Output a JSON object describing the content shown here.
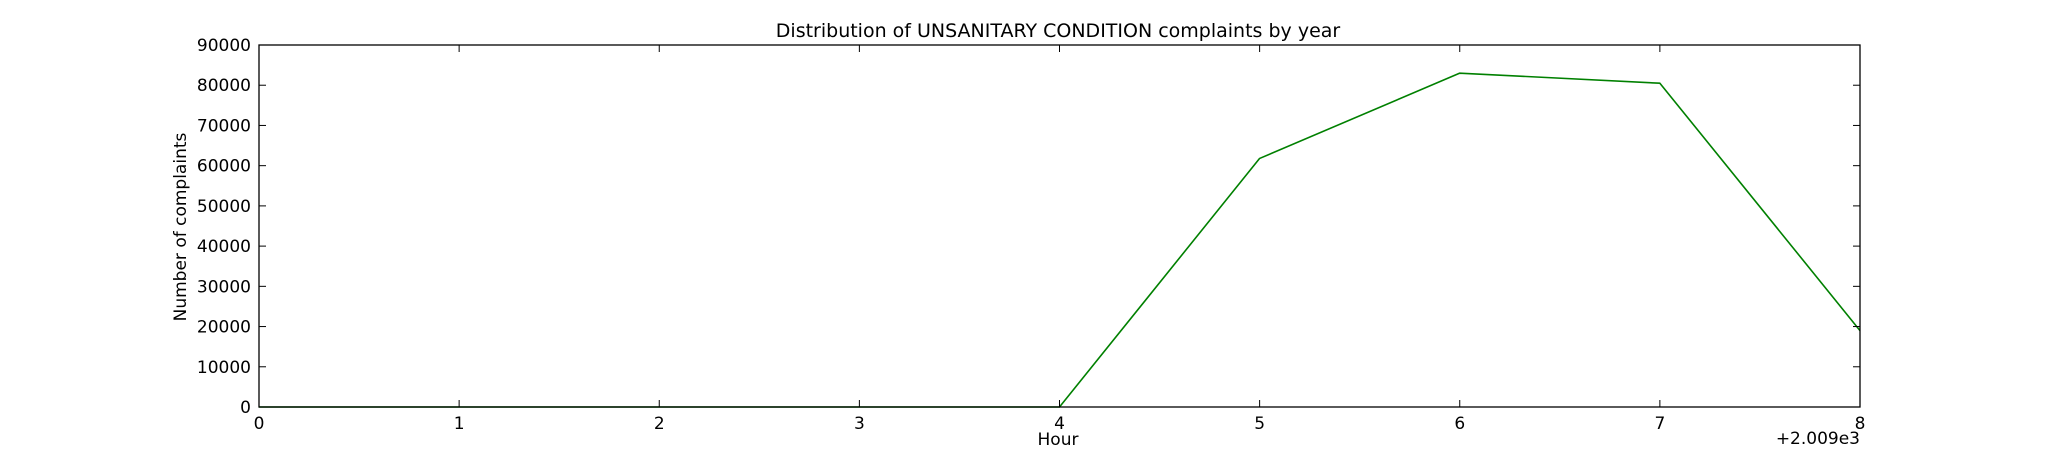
{
  "chart_data": {
    "type": "line",
    "title": "Distribution of  UNSANITARY CONDITION complaints by year",
    "xlabel": "Hour",
    "ylabel": "Number of complaints",
    "x_offset_label": "+2.009e3",
    "xlim": [
      0,
      8
    ],
    "ylim": [
      0,
      90000
    ],
    "x_ticks": [
      0,
      1,
      2,
      3,
      4,
      5,
      6,
      7,
      8
    ],
    "y_ticks": [
      0,
      10000,
      20000,
      30000,
      40000,
      50000,
      60000,
      70000,
      80000,
      90000
    ],
    "grid": false,
    "series": [
      {
        "color": "#008000",
        "x": [
          0,
          1,
          2,
          3,
          4,
          5,
          6,
          7,
          8
        ],
        "y": [
          0,
          0,
          0,
          0,
          0,
          61800,
          83000,
          80500,
          19000
        ]
      }
    ]
  }
}
